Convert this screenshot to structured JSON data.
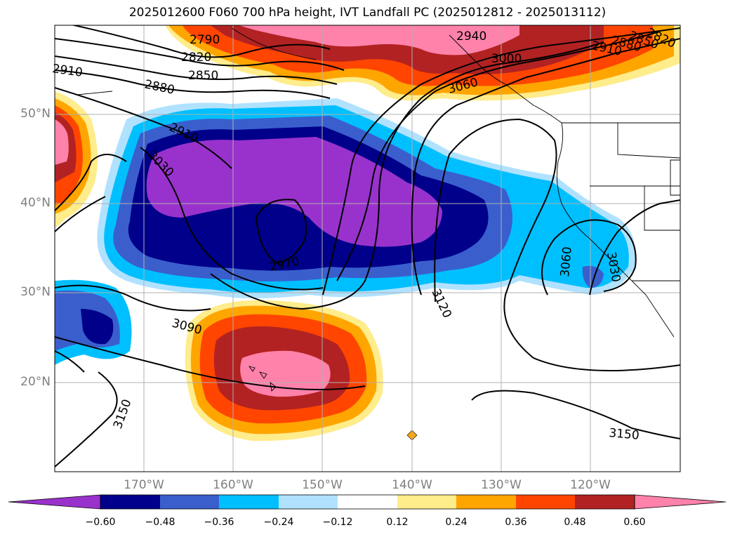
{
  "title": "2025012600 F060 700 hPa height, IVT Landfall PC (2025012812 - 2025013112)",
  "lat_labels": [
    "50°N",
    "40°N",
    "30°N",
    "20°N"
  ],
  "lon_labels": [
    "170°W",
    "160°W",
    "150°W",
    "140°W",
    "130°W",
    "120°W"
  ],
  "colorbar": {
    "ticks": [
      "−0.60",
      "−0.48",
      "−0.36",
      "−0.24",
      "−0.12",
      "0.12",
      "0.24",
      "0.36",
      "0.48",
      "0.60"
    ],
    "colors": [
      "#9932cc",
      "#00008b",
      "#3a5fcd",
      "#00bfff",
      "#b0e2ff",
      "#ffffff",
      "#ffec8b",
      "#ffa500",
      "#ff4500",
      "#b22222",
      "#ff82ab"
    ]
  },
  "contour_labels": [
    "2790",
    "2820",
    "2850",
    "2880",
    "2910",
    "2940",
    "3000",
    "3060",
    "2970",
    "3030",
    "3090",
    "3120",
    "3150",
    "3060",
    "3030",
    "3150",
    "2910",
    "2880",
    "2850",
    "2820"
  ],
  "colors": {
    "grid": "#b0b0b0",
    "contour": "#000000",
    "coast": "#000000"
  }
}
